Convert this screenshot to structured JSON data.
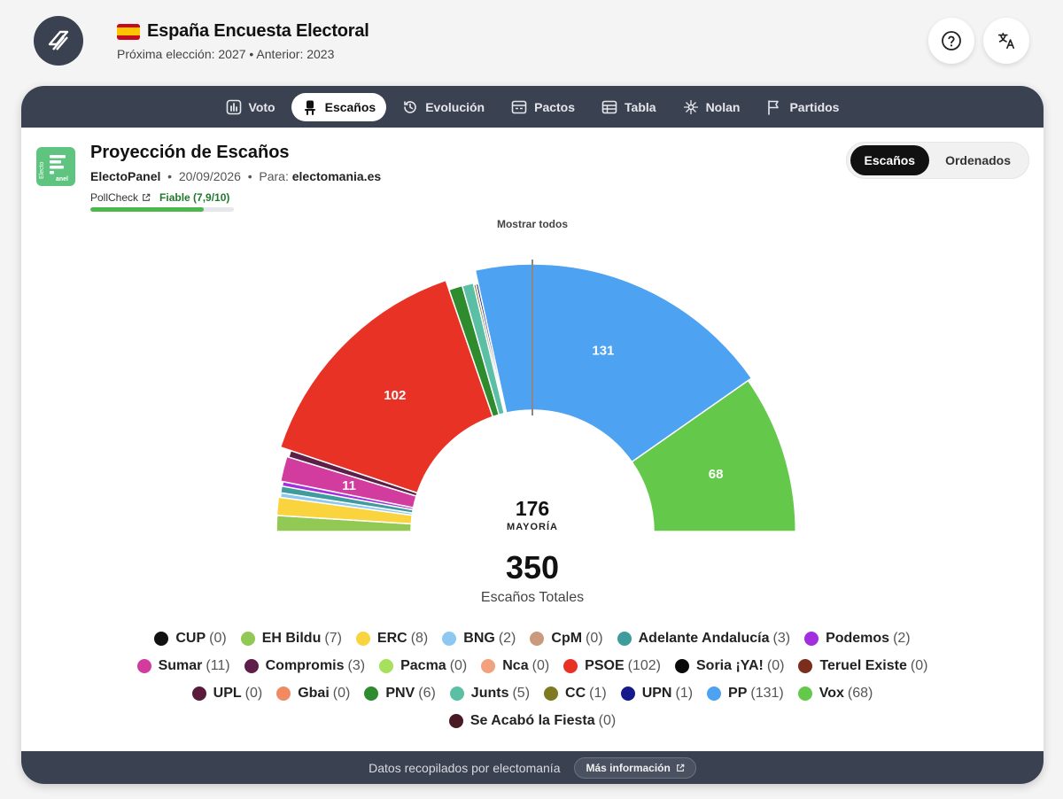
{
  "header": {
    "title": "España Encuesta Electoral",
    "subtitle": "Próxima elección: 2027 • Anterior: 2023",
    "logo_icon": "electomania-logo-icon",
    "help_icon": "help-icon",
    "translate_icon": "translate-icon"
  },
  "nav": {
    "tabs": [
      {
        "label": "Voto",
        "icon": "bar-chart-icon",
        "active": false
      },
      {
        "label": "Escaños",
        "icon": "seat-icon",
        "active": true
      },
      {
        "label": "Evolución",
        "icon": "history-icon",
        "active": false
      },
      {
        "label": "Pactos",
        "icon": "pacts-icon",
        "active": false
      },
      {
        "label": "Tabla",
        "icon": "table-icon",
        "active": false
      },
      {
        "label": "Nolan",
        "icon": "nolan-grid-icon",
        "active": false
      },
      {
        "label": "Partidos",
        "icon": "flag-icon",
        "active": false
      }
    ]
  },
  "panel": {
    "title": "Proyección de Escaños",
    "pollster": "ElectoPanel",
    "date": "20/09/2026",
    "for_label": "Para:",
    "for_value": "electomania.es",
    "logo_text": "Electo panel",
    "pollcheck_label": "PollCheck",
    "rating_label": "Fiable (7,9/10)",
    "rating_fraction": 0.79
  },
  "view_toggle": {
    "options": [
      "Escaños",
      "Ordenados"
    ],
    "selected": "Escaños"
  },
  "show_all_label": "Mostrar todos",
  "chart_data": {
    "type": "pie",
    "variant": "parliament-semicircle",
    "total_seats": 350,
    "total_label": "Escaños Totales",
    "majority": 176,
    "majority_label": "MAYORÍA",
    "segments": [
      {
        "party": "EH Bildu",
        "seats": 7,
        "color": "#92c854"
      },
      {
        "party": "ERC",
        "seats": 8,
        "color": "#f9d43e"
      },
      {
        "party": "BNG",
        "seats": 2,
        "color": "#8cc8f0"
      },
      {
        "party": "Adelante Andalucía",
        "seats": 3,
        "color": "#3f9c9c"
      },
      {
        "party": "Podemos",
        "seats": 2,
        "color": "#a12fe0"
      },
      {
        "party": "Sumar",
        "seats": 11,
        "color": "#d13c9e"
      },
      {
        "party": "Compromis",
        "seats": 3,
        "color": "#5d1f47"
      },
      {
        "party": "PSOE",
        "seats": 102,
        "color": "#e93226"
      },
      {
        "party": "PNV",
        "seats": 6,
        "color": "#2e8b2e"
      },
      {
        "party": "Junts",
        "seats": 5,
        "color": "#5bbfa6"
      },
      {
        "party": "CC",
        "seats": 1,
        "color": "#7d7a22"
      },
      {
        "party": "UPN",
        "seats": 1,
        "color": "#141a8c"
      },
      {
        "party": "PP",
        "seats": 131,
        "color": "#4ea2f2"
      },
      {
        "party": "Vox",
        "seats": 68,
        "color": "#64c84b"
      }
    ],
    "labels": [
      {
        "party": "PSOE",
        "text": "102"
      },
      {
        "party": "Sumar",
        "text": "11"
      },
      {
        "party": "PP",
        "text": "131"
      },
      {
        "party": "Vox",
        "text": "68"
      }
    ]
  },
  "legend": [
    {
      "name": "CUP",
      "count": "(0)",
      "color": "#111111"
    },
    {
      "name": "EH Bildu",
      "count": "(7)",
      "color": "#92c854"
    },
    {
      "name": "ERC",
      "count": "(8)",
      "color": "#f9d43e"
    },
    {
      "name": "BNG",
      "count": "(2)",
      "color": "#8cc8f0"
    },
    {
      "name": "CpM",
      "count": "(0)",
      "color": "#c99a7c"
    },
    {
      "name": "Adelante Andalucía",
      "count": "(3)",
      "color": "#3f9c9c"
    },
    {
      "name": "Podemos",
      "count": "(2)",
      "color": "#a12fe0"
    },
    {
      "name": "Sumar",
      "count": "(11)",
      "color": "#d13c9e"
    },
    {
      "name": "Compromis",
      "count": "(3)",
      "color": "#5d1f47"
    },
    {
      "name": "Pacma",
      "count": "(0)",
      "color": "#a6e05c"
    },
    {
      "name": "Nca",
      "count": "(0)",
      "color": "#f3a07e"
    },
    {
      "name": "PSOE",
      "count": "(102)",
      "color": "#e93226"
    },
    {
      "name": "Soria ¡YA!",
      "count": "(0)",
      "color": "#0a0a0a"
    },
    {
      "name": "Teruel Existe",
      "count": "(0)",
      "color": "#7b2e1e"
    },
    {
      "name": "UPL",
      "count": "(0)",
      "color": "#5a1a3c"
    },
    {
      "name": "Gbai",
      "count": "(0)",
      "color": "#ef8a63"
    },
    {
      "name": "PNV",
      "count": "(6)",
      "color": "#2e8b2e"
    },
    {
      "name": "Junts",
      "count": "(5)",
      "color": "#5bbfa6"
    },
    {
      "name": "CC",
      "count": "(1)",
      "color": "#7d7a22"
    },
    {
      "name": "UPN",
      "count": "(1)",
      "color": "#141a8c"
    },
    {
      "name": "PP",
      "count": "(131)",
      "color": "#4ea2f2"
    },
    {
      "name": "Vox",
      "count": "(68)",
      "color": "#64c84b"
    },
    {
      "name": "Se Acabó la Fiesta",
      "count": "(0)",
      "color": "#4a1a24"
    }
  ],
  "footer": {
    "text": "Datos recopilados por electomanía",
    "more_label": "Más información",
    "external_icon": "external-link-icon"
  }
}
